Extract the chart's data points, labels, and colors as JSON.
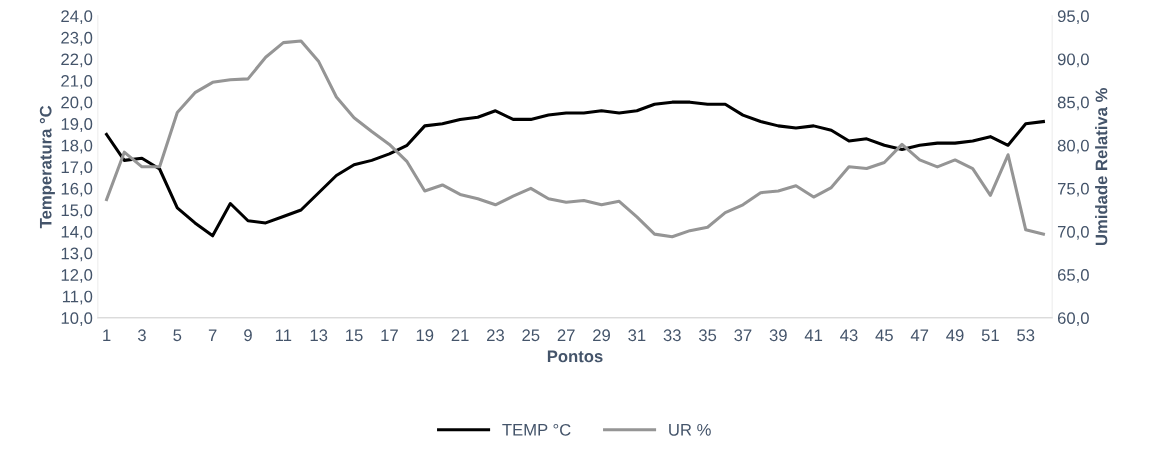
{
  "chart_data": {
    "type": "line",
    "xlabel": "Pontos",
    "ylabel": "Temperatura °C",
    "y2label": "Umidade Relativa %",
    "categories": [
      "1",
      null,
      "3",
      null,
      "5",
      null,
      "7",
      null,
      "9",
      null,
      "11",
      null,
      "13",
      null,
      "15",
      null,
      "17",
      null,
      "19",
      null,
      "21",
      null,
      "23",
      null,
      "25",
      null,
      "27",
      null,
      "29",
      null,
      "31",
      null,
      "33",
      null,
      "35",
      null,
      "37",
      null,
      "39",
      null,
      "41",
      null,
      "43",
      null,
      "45",
      null,
      "47",
      null,
      "49",
      null,
      "51",
      null,
      "53",
      null
    ],
    "series": [
      {
        "name": "TEMP °C",
        "color": "#000000",
        "values": [
          18.5,
          17.3,
          17.4,
          16.9,
          15.1,
          14.4,
          13.8,
          15.3,
          14.5,
          14.4,
          14.7,
          15.0,
          15.8,
          16.6,
          17.1,
          17.3,
          17.6,
          18.0,
          18.9,
          19.0,
          19.2,
          19.3,
          19.6,
          19.2,
          19.2,
          19.4,
          19.5,
          19.5,
          19.6,
          19.5,
          19.6,
          19.9,
          20.0,
          20.0,
          19.9,
          19.9,
          19.4,
          19.1,
          18.9,
          18.8,
          18.9,
          18.7,
          18.2,
          18.3,
          18.0,
          17.8,
          18.0,
          18.1,
          18.1,
          18.2,
          18.4,
          18.0,
          19.0,
          19.1
        ]
      },
      {
        "name": "UR %",
        "color": "#959595",
        "axis": "y2",
        "values": [
          73.7,
          79.2,
          77.5,
          77.5,
          83.8,
          86.1,
          87.3,
          87.6,
          87.7,
          90.2,
          91.9,
          92.1,
          89.7,
          85.6,
          83.2,
          81.6,
          80.1,
          78.1,
          74.7,
          75.4,
          74.3,
          73.8,
          73.1,
          74.1,
          75.0,
          73.8,
          73.4,
          73.6,
          73.1,
          73.5,
          71.7,
          69.7,
          69.4,
          70.1,
          70.5,
          72.2,
          73.1,
          74.5,
          74.7,
          75.3,
          74.0,
          75.1,
          77.5,
          77.3,
          78.0,
          80.1,
          78.3,
          77.5,
          78.3,
          77.3,
          74.2,
          78.9,
          70.2,
          69.7
        ]
      }
    ],
    "ylim": [
      10,
      24
    ],
    "yticks": [
      {
        "value": 10,
        "label": "10,0"
      },
      {
        "value": 11,
        "label": "11,0"
      },
      {
        "value": 12,
        "label": "12,0"
      },
      {
        "value": 13,
        "label": "13,0"
      },
      {
        "value": 14,
        "label": "14,0"
      },
      {
        "value": 15,
        "label": "15,0"
      },
      {
        "value": 16,
        "label": "16,0"
      },
      {
        "value": 17,
        "label": "17,0"
      },
      {
        "value": 18,
        "label": "18,0"
      },
      {
        "value": 19,
        "label": "19,0"
      },
      {
        "value": 20,
        "label": "20,0"
      },
      {
        "value": 21,
        "label": "21,0"
      },
      {
        "value": 22,
        "label": "22,0"
      },
      {
        "value": 23,
        "label": "23,0"
      },
      {
        "value": 24,
        "label": "24,0"
      }
    ],
    "y2lim": [
      60,
      95
    ],
    "y2ticks": [
      {
        "value": 60,
        "label": "60,0"
      },
      {
        "value": 65,
        "label": "65,0"
      },
      {
        "value": 70,
        "label": "70,0"
      },
      {
        "value": 75,
        "label": "75,0"
      },
      {
        "value": 80,
        "label": "80,0"
      },
      {
        "value": 85,
        "label": "85,0"
      },
      {
        "value": 90,
        "label": "90,0"
      },
      {
        "value": 95,
        "label": "95,0"
      }
    ],
    "grid": false,
    "legend": "bottom",
    "marker": "none",
    "line_style": "solid"
  }
}
